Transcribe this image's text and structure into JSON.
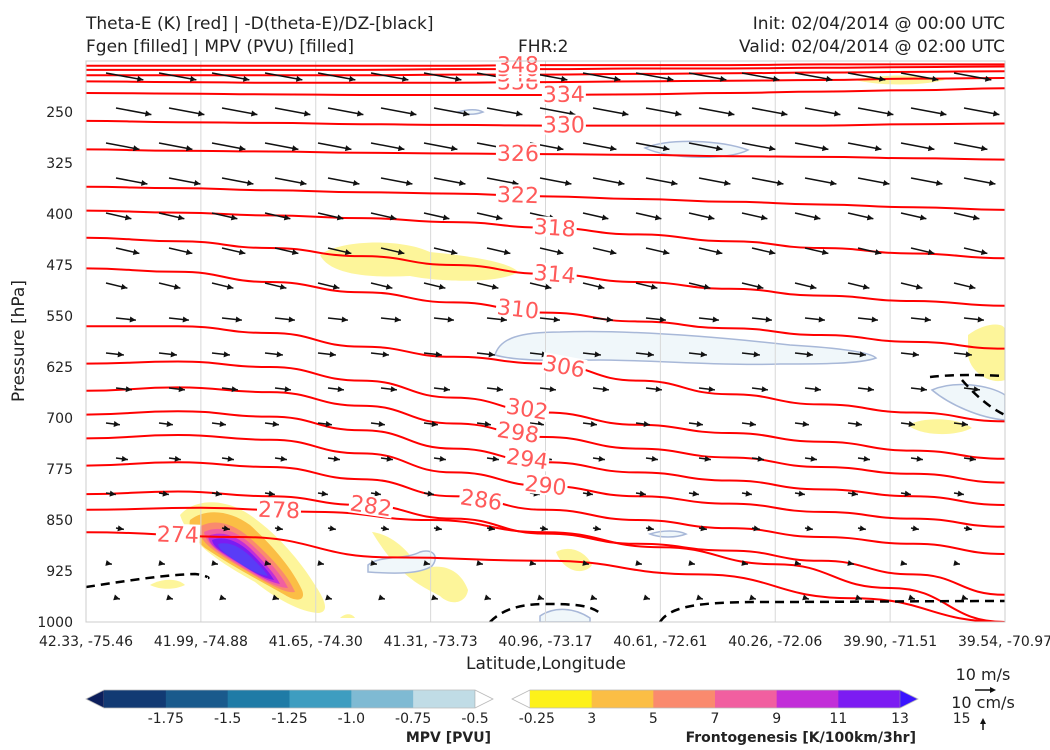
{
  "header": {
    "title_line1": "Theta-E (K) [red] | -D(theta-E)/DZ-[black]",
    "title_line2": "Fgen [filled] | MPV (PVU) [filled]",
    "fhr": "FHR:2",
    "init": "Init: 02/04/2014 @ 00:00 UTC",
    "valid": "Valid: 02/04/2014 @ 02:00 UTC"
  },
  "chart_data": {
    "type": "cross-section",
    "xlabel": "Latitude,Longitude",
    "ylabel": "Pressure [hPa]",
    "ylim": [
      1000,
      175
    ],
    "x_ticks": [
      "42.33, -75.46",
      "41.99, -74.88",
      "41.65, -74.30",
      "41.31, -73.73",
      "40.96, -73.17",
      "40.61, -72.61",
      "40.26, -72.06",
      "39.90, -71.51",
      "39.54, -70.97"
    ],
    "y_ticks": [
      250,
      325,
      400,
      475,
      550,
      625,
      700,
      775,
      850,
      925,
      1000
    ],
    "theta_e_contours": [
      {
        "level": "274",
        "p": [
          868,
          875,
          905,
          910,
          930,
          965,
          1000
        ]
      },
      {
        "level": "278",
        "p": [
          835,
          832,
          838,
          850,
          868,
          890,
          915,
          950,
          1000
        ]
      },
      {
        "level": "282",
        "p": [
          812,
          808,
          815,
          828,
          848,
          870,
          885,
          895,
          910,
          930,
          960
        ]
      },
      {
        "level": "286",
        "p": [
          770,
          765,
          772,
          790,
          815,
          835,
          850,
          862,
          875,
          885,
          900
        ]
      },
      {
        "level": "290",
        "p": [
          730,
          725,
          732,
          752,
          780,
          800,
          815,
          826,
          838,
          848,
          860
        ]
      },
      {
        "level": "294",
        "p": [
          695,
          690,
          698,
          718,
          745,
          765,
          780,
          792,
          805,
          815,
          828
        ]
      },
      {
        "level": "298",
        "p": [
          660,
          655,
          662,
          682,
          708,
          728,
          745,
          758,
          772,
          782,
          795
        ]
      },
      {
        "level": "302",
        "p": [
          620,
          617,
          625,
          645,
          670,
          692,
          710,
          722,
          735,
          748,
          760
        ]
      },
      {
        "level": "306",
        "p": [
          565,
          565,
          575,
          595,
          610,
          620,
          645,
          665,
          680,
          692,
          705
        ]
      },
      {
        "level": "310",
        "p": [
          480,
          485,
          500,
          515,
          530,
          545,
          558,
          568,
          578,
          588,
          598
        ]
      },
      {
        "level": "314",
        "p": [
          435,
          440,
          450,
          462,
          475,
          488,
          500,
          510,
          520,
          528,
          535
        ]
      },
      {
        "level": "318",
        "p": [
          395,
          398,
          402,
          406,
          412,
          420,
          430,
          440,
          450,
          458,
          465
        ]
      },
      {
        "level": "322",
        "p": [
          360,
          362,
          365,
          368,
          370,
          374,
          378,
          382,
          386,
          390,
          394
        ]
      },
      {
        "level": "326",
        "p": [
          305,
          307,
          308,
          310,
          311,
          312,
          313,
          315,
          316,
          318,
          320
        ]
      },
      {
        "level": "330",
        "p": [
          263,
          265,
          266,
          268,
          269,
          270,
          270,
          270,
          270,
          268,
          267
        ]
      },
      {
        "level": "334",
        "p": [
          222,
          223,
          224,
          225,
          225,
          225,
          224,
          222,
          220,
          218,
          215
        ]
      },
      {
        "level": "338",
        "p": [
          205,
          206,
          207,
          207,
          207,
          206,
          205,
          204,
          203,
          201,
          200
        ]
      },
      {
        "level": "342",
        "p": [
          196,
          196,
          196,
          196,
          195,
          195,
          194,
          193,
          192,
          191,
          190
        ]
      },
      {
        "level": "346",
        "p": [
          188,
          188,
          188,
          188,
          187,
          187,
          186,
          186,
          185,
          184,
          183
        ]
      },
      {
        "level": "348",
        "p": [
          182,
          182,
          182,
          182,
          182,
          181,
          181,
          181,
          180,
          180,
          180
        ]
      }
    ],
    "colorbars": [
      {
        "label": "MPV [PVU]",
        "ticks": [
          "-1.75",
          "-1.5",
          "-1.25",
          "-1.0",
          "-0.75",
          "-0.5",
          "-0.25"
        ],
        "colors": [
          "#0c1f5c",
          "#123a73",
          "#1a5a8c",
          "#1f7ba6",
          "#3e9dc0",
          "#7fbad3",
          "#c0dce6",
          "#ffffff"
        ]
      },
      {
        "label": "Frontogenesis [K/100km/3hr]",
        "ticks": [
          "3",
          "5",
          "7",
          "9",
          "11",
          "13",
          "15"
        ],
        "colors": [
          "#ffffff",
          "#fdf11a",
          "#fbbe45",
          "#fa8a6e",
          "#f15fa0",
          "#c22ed8",
          "#7c1cf2",
          "#3a14ff"
        ]
      }
    ],
    "wind_scale": {
      "horizontal": "10 m/s",
      "vertical": "10 cm/s"
    }
  },
  "colors": {
    "theta_e": "#ff0000",
    "stability": "#000000",
    "label": "#ff5a5a"
  }
}
